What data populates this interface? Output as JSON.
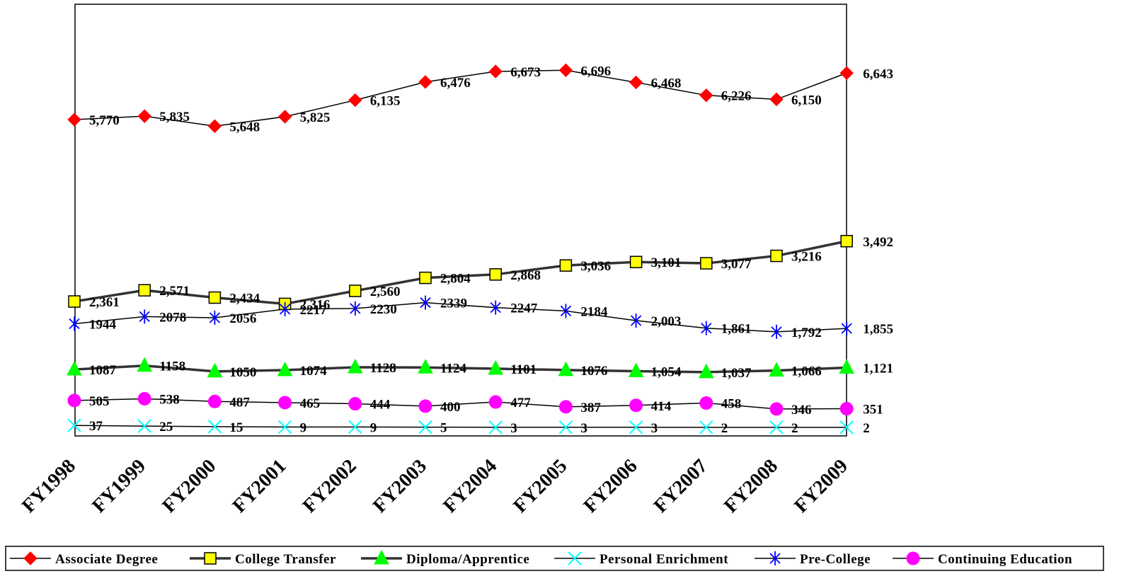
{
  "chart_data": {
    "type": "line",
    "title": "",
    "xlabel": "",
    "ylabel": "",
    "categories": [
      "FY1998",
      "FY1999",
      "FY2000",
      "FY2001",
      "FY2002",
      "FY2003",
      "FY2004",
      "FY2005",
      "FY2006",
      "FY2007",
      "FY2008",
      "FY2009"
    ],
    "ylim": [
      0,
      7000
    ],
    "grid": false,
    "legend_position": "bottom",
    "series": [
      {
        "name": "Associate Degree",
        "color": "#ff0000",
        "line_color": "#000000",
        "line_weight": "thin",
        "marker": "diamond",
        "values": [
          5770,
          5835,
          5648,
          5825,
          6135,
          6476,
          6673,
          6696,
          6468,
          6226,
          6150,
          6643
        ],
        "labels": [
          "5,770",
          "5,835",
          "5,648",
          "5,825",
          "6,135",
          "6,476",
          "6,673",
          "6,696",
          "6,468",
          "6,226",
          "6,150",
          "6,643"
        ]
      },
      {
        "name": "College Transfer",
        "color": "#ffff00",
        "line_color": "#333333",
        "line_weight": "thick",
        "marker": "square",
        "values": [
          2361,
          2571,
          2434,
          2316,
          2560,
          2804,
          2868,
          3036,
          3101,
          3077,
          3216,
          3492
        ],
        "labels": [
          "2,361",
          "2,571",
          "2,434",
          "2,316",
          "2,560",
          "2,804",
          "2,868",
          "3,036",
          "3,101",
          "3,077",
          "3,216",
          "3,492"
        ]
      },
      {
        "name": "Diploma/Apprentice",
        "color": "#00ff00",
        "line_color": "#333333",
        "line_weight": "thick",
        "marker": "triangle",
        "values": [
          1087,
          1158,
          1050,
          1074,
          1128,
          1124,
          1101,
          1076,
          1054,
          1037,
          1066,
          1121
        ],
        "labels": [
          "1087",
          "1158",
          "1050",
          "1074",
          "1128",
          "1124",
          "1101",
          "1076",
          "1,054",
          "1,037",
          "1,066",
          "1,121"
        ]
      },
      {
        "name": "Personal Enrichment",
        "color": "#00ffff",
        "line_color": "#000000",
        "line_weight": "thin",
        "marker": "x",
        "values": [
          37,
          25,
          15,
          9,
          9,
          5,
          3,
          3,
          3,
          2,
          2,
          2
        ],
        "labels": [
          "37",
          "25",
          "15",
          "9",
          "9",
          "5",
          "3",
          "3",
          "3",
          "2",
          "2",
          "2"
        ]
      },
      {
        "name": "Pre-College",
        "color": "#0000ff",
        "line_color": "#000000",
        "line_weight": "thin",
        "marker": "star",
        "values": [
          1944,
          2078,
          2056,
          2217,
          2230,
          2339,
          2247,
          2184,
          2003,
          1861,
          1792,
          1855
        ],
        "labels": [
          "1944",
          "2078",
          "2056",
          "2217",
          "2230",
          "2339",
          "2247",
          "2184",
          "2,003",
          "1,861",
          "1,792",
          "1,855"
        ]
      },
      {
        "name": "Continuing Education",
        "color": "#ff00ff",
        "line_color": "#000000",
        "line_weight": "thin",
        "marker": "circle",
        "values": [
          505,
          538,
          487,
          465,
          444,
          400,
          477,
          387,
          414,
          458,
          346,
          351
        ],
        "labels": [
          "505",
          "538",
          "487",
          "465",
          "444",
          "400",
          "477",
          "387",
          "414",
          "458",
          "346",
          "351"
        ]
      }
    ]
  }
}
